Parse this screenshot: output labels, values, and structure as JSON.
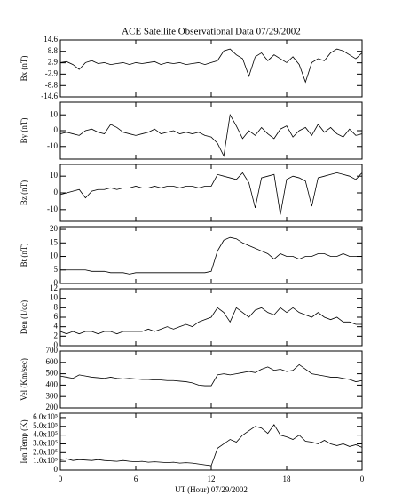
{
  "chart_data": [
    {
      "type": "line",
      "title": "ACE Satellite Observational Data  07/29/2002",
      "ylabel": "Bx (nT)",
      "xlim": [
        0,
        24
      ],
      "xticks": [
        0,
        6,
        12,
        18,
        {
          "value": 24,
          "label": "0"
        }
      ],
      "ylim": [
        -14.6,
        14.6
      ],
      "yticks": [
        14.6,
        8.8,
        2.9,
        -2.9,
        -8.8,
        -14.6
      ],
      "color": "#000000",
      "x": [
        0,
        0.5,
        1,
        1.5,
        2,
        2.5,
        3,
        3.5,
        4,
        4.5,
        5,
        5.5,
        6,
        6.5,
        7,
        7.5,
        8,
        8.5,
        9,
        9.5,
        10,
        10.5,
        11,
        11.5,
        12,
        12.5,
        13,
        13.5,
        14,
        14.5,
        15,
        15.5,
        16,
        16.5,
        17,
        17.5,
        18,
        18.5,
        19,
        19.5,
        20,
        20.5,
        21,
        21.5,
        22,
        22.5,
        23,
        23.5,
        24
      ],
      "values": [
        3,
        3.5,
        2,
        -0.5,
        3,
        4,
        2.5,
        3,
        2,
        2.5,
        3,
        2,
        3,
        2.5,
        3,
        3.5,
        2,
        3,
        2.5,
        3,
        2,
        2.5,
        3,
        2,
        3,
        4,
        9,
        10,
        7,
        5,
        -4,
        6,
        8,
        4,
        7,
        5,
        3,
        6,
        2,
        -7,
        3,
        5,
        4,
        8,
        10,
        9,
        7,
        5,
        8
      ]
    },
    {
      "type": "line",
      "ylabel": "By (nT)",
      "xlim": [
        0,
        24
      ],
      "xticks": [
        0,
        6,
        12,
        18,
        {
          "value": 24,
          "label": "0"
        }
      ],
      "ylim": [
        -18,
        18
      ],
      "yticks": [
        10,
        0,
        -10
      ],
      "color": "#000000",
      "x": [
        0,
        0.5,
        1,
        1.5,
        2,
        2.5,
        3,
        3.5,
        4,
        4.5,
        5,
        5.5,
        6,
        6.5,
        7,
        7.5,
        8,
        8.5,
        9,
        9.5,
        10,
        10.5,
        11,
        11.5,
        12,
        12.5,
        13,
        13.5,
        14,
        14.5,
        15,
        15.5,
        16,
        16.5,
        17,
        17.5,
        18,
        18.5,
        19,
        19.5,
        20,
        20.5,
        21,
        21.5,
        22,
        22.5,
        23,
        23.5,
        24
      ],
      "values": [
        -2,
        -1,
        -2,
        -3,
        0,
        1,
        -1,
        -2,
        4,
        2,
        -1,
        -2,
        -3,
        -2,
        -1,
        1,
        -2,
        -1,
        0,
        -2,
        -1,
        -2,
        -1,
        -3,
        -4,
        -8,
        -16,
        10,
        3,
        -5,
        0,
        -3,
        2,
        -2,
        -5,
        1,
        3,
        -4,
        0,
        2,
        -3,
        4,
        -1,
        2,
        -2,
        -4,
        1,
        -3,
        -2
      ]
    },
    {
      "type": "line",
      "ylabel": "Bz (nT)",
      "xlim": [
        0,
        24
      ],
      "xticks": [
        0,
        6,
        12,
        18,
        {
          "value": 24,
          "label": "0"
        }
      ],
      "ylim": [
        -17,
        17
      ],
      "yticks": [
        10,
        0,
        -10
      ],
      "color": "#000000",
      "x": [
        0,
        0.5,
        1,
        1.5,
        2,
        2.5,
        3,
        3.5,
        4,
        4.5,
        5,
        5.5,
        6,
        6.5,
        7,
        7.5,
        8,
        8.5,
        9,
        9.5,
        10,
        10.5,
        11,
        11.5,
        12,
        12.5,
        13,
        13.5,
        14,
        14.5,
        15,
        15.5,
        16,
        16.5,
        17,
        17.5,
        18,
        18.5,
        19,
        19.5,
        20,
        20.5,
        21,
        21.5,
        22,
        22.5,
        23,
        23.5,
        24
      ],
      "values": [
        -1,
        0,
        1,
        2,
        -3,
        1,
        2,
        2,
        3,
        2,
        3,
        3,
        4,
        3,
        3,
        4,
        3,
        4,
        4,
        3,
        4,
        4,
        3,
        4,
        4,
        11,
        10,
        9,
        8,
        12,
        6,
        -9,
        9,
        10,
        11,
        -13,
        8,
        10,
        9,
        7,
        -8,
        9,
        10,
        11,
        12,
        11,
        10,
        8,
        12
      ]
    },
    {
      "type": "line",
      "ylabel": "Bt (nT)",
      "xlim": [
        0,
        24
      ],
      "xticks": [
        0,
        6,
        12,
        18,
        {
          "value": 24,
          "label": "0"
        }
      ],
      "ylim": [
        0,
        21
      ],
      "yticks": [
        0,
        5,
        10,
        15,
        20
      ],
      "color": "#000000",
      "x": [
        0,
        0.5,
        1,
        1.5,
        2,
        2.5,
        3,
        3.5,
        4,
        4.5,
        5,
        5.5,
        6,
        6.5,
        7,
        7.5,
        8,
        8.5,
        9,
        9.5,
        10,
        10.5,
        11,
        11.5,
        12,
        12.5,
        13,
        13.5,
        14,
        14.5,
        15,
        15.5,
        16,
        16.5,
        17,
        17.5,
        18,
        18.5,
        19,
        19.5,
        20,
        20.5,
        21,
        21.5,
        22,
        22.5,
        23,
        23.5,
        24
      ],
      "values": [
        5,
        5,
        5,
        5,
        5,
        4.5,
        4.5,
        4.5,
        4,
        4,
        4,
        3.5,
        4,
        4,
        4,
        4,
        4,
        4,
        4,
        4,
        4,
        4,
        4,
        4,
        4.5,
        12,
        16,
        17,
        16.5,
        15,
        14,
        13,
        12,
        11,
        9,
        11,
        10,
        10,
        9,
        10,
        10,
        11,
        11,
        10,
        10,
        11,
        10,
        10,
        10
      ]
    },
    {
      "type": "line",
      "ylabel": "Den (1/cc)",
      "xlim": [
        0,
        24
      ],
      "xticks": [
        0,
        6,
        12,
        18,
        {
          "value": 24,
          "label": "0"
        }
      ],
      "ylim": [
        0,
        12
      ],
      "yticks": [
        0,
        2,
        4,
        6,
        8,
        10,
        12
      ],
      "color": "#000000",
      "x": [
        0,
        0.5,
        1,
        1.5,
        2,
        2.5,
        3,
        3.5,
        4,
        4.5,
        5,
        5.5,
        6,
        6.5,
        7,
        7.5,
        8,
        8.5,
        9,
        9.5,
        10,
        10.5,
        11,
        11.5,
        12,
        12.5,
        13,
        13.5,
        14,
        14.5,
        15,
        15.5,
        16,
        16.5,
        17,
        17.5,
        18,
        18.5,
        19,
        19.5,
        20,
        20.5,
        21,
        21.5,
        22,
        22.5,
        23,
        23.5,
        24
      ],
      "values": [
        3,
        2.5,
        3,
        2.5,
        3,
        3,
        2.5,
        3,
        3,
        2.5,
        3,
        3,
        3,
        3,
        3.5,
        3,
        3.5,
        4,
        3.5,
        4,
        4.5,
        4,
        5,
        5.5,
        6,
        8,
        7,
        5,
        8,
        7,
        6,
        7.5,
        8,
        7,
        6.5,
        8,
        7,
        8,
        7,
        6.5,
        6,
        7,
        6,
        5.5,
        6,
        5,
        5,
        4.5,
        4.5
      ]
    },
    {
      "type": "line",
      "ylabel": "Vel (Km/sec)",
      "xlim": [
        0,
        24
      ],
      "xticks": [
        0,
        6,
        12,
        18,
        {
          "value": 24,
          "label": "0"
        }
      ],
      "ylim": [
        200,
        700
      ],
      "yticks": [
        200,
        300,
        400,
        500,
        600,
        700
      ],
      "color": "#000000",
      "x": [
        0,
        0.5,
        1,
        1.5,
        2,
        2.5,
        3,
        3.5,
        4,
        4.5,
        5,
        5.5,
        6,
        6.5,
        7,
        7.5,
        8,
        8.5,
        9,
        9.5,
        10,
        10.5,
        11,
        11.5,
        12,
        12.5,
        13,
        13.5,
        14,
        14.5,
        15,
        15.5,
        16,
        16.5,
        17,
        17.5,
        18,
        18.5,
        19,
        19.5,
        20,
        20.5,
        21,
        21.5,
        22,
        22.5,
        23,
        23.5,
        24
      ],
      "values": [
        480,
        470,
        460,
        490,
        480,
        470,
        465,
        460,
        470,
        460,
        455,
        460,
        455,
        450,
        450,
        445,
        445,
        440,
        440,
        435,
        430,
        420,
        400,
        395,
        395,
        490,
        500,
        490,
        500,
        510,
        520,
        510,
        540,
        560,
        530,
        540,
        520,
        530,
        580,
        540,
        500,
        490,
        480,
        470,
        470,
        460,
        450,
        430,
        440
      ]
    },
    {
      "type": "line",
      "ylabel": "Ion Temp (K)",
      "xlabel": "UT (Hour)  07/29/2002",
      "xlim": [
        0,
        24
      ],
      "xticks": [
        0,
        6,
        12,
        18,
        {
          "value": 24,
          "label": "0"
        }
      ],
      "ylim": [
        0,
        650000
      ],
      "yticks": [
        0,
        {
          "value": 100000,
          "label": "1.0x10⁵"
        },
        {
          "value": 200000,
          "label": "2.0x10⁵"
        },
        {
          "value": 300000,
          "label": "3.0x10⁵"
        },
        {
          "value": 400000,
          "label": "4.0x10⁵"
        },
        {
          "value": 500000,
          "label": "5.0x10⁵"
        },
        {
          "value": 600000,
          "label": "6.0x10⁵"
        }
      ],
      "color": "#000000",
      "x": [
        0,
        0.5,
        1,
        1.5,
        2,
        2.5,
        3,
        3.5,
        4,
        4.5,
        5,
        5.5,
        6,
        6.5,
        7,
        7.5,
        8,
        8.5,
        9,
        9.5,
        10,
        10.5,
        11,
        11.5,
        12,
        12.5,
        13,
        13.5,
        14,
        14.5,
        15,
        15.5,
        16,
        16.5,
        17,
        17.5,
        18,
        18.5,
        19,
        19.5,
        20,
        20.5,
        21,
        21.5,
        22,
        22.5,
        23,
        23.5,
        24
      ],
      "values": [
        120000,
        130000,
        110000,
        120000,
        115000,
        110000,
        120000,
        110000,
        105000,
        100000,
        110000,
        100000,
        95000,
        100000,
        90000,
        95000,
        90000,
        85000,
        90000,
        80000,
        85000,
        80000,
        70000,
        60000,
        50000,
        250000,
        300000,
        350000,
        320000,
        400000,
        450000,
        500000,
        480000,
        420000,
        520000,
        400000,
        380000,
        350000,
        400000,
        330000,
        320000,
        300000,
        340000,
        300000,
        280000,
        300000,
        270000,
        290000,
        260000
      ]
    }
  ]
}
